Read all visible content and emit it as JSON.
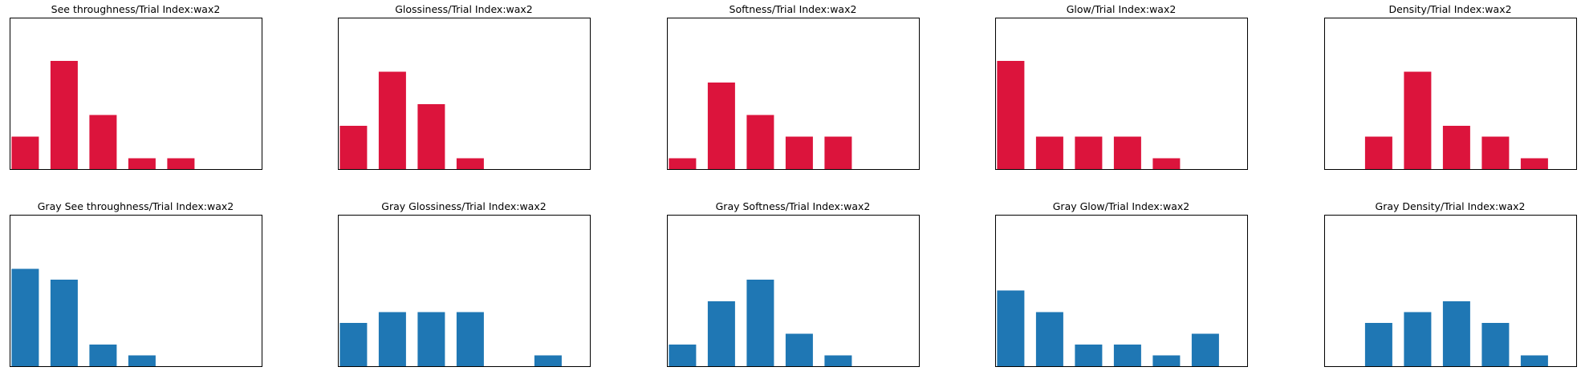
{
  "colors": {
    "red_series": "#DC143C",
    "blue_series": "#1F77B4",
    "frame": "#000000",
    "background": "#FFFFFF"
  },
  "chart_data": [
    {
      "type": "bar",
      "title": "See throughness/Trial Index:wax2",
      "xlabel": "",
      "ylabel": "",
      "xlim": [
        0,
        6
      ],
      "ylim": [
        0,
        7
      ],
      "grid": false,
      "color": "red",
      "series": [
        {
          "values": [
            {
              "x": 1,
              "y": 1.5
            },
            {
              "x": 2,
              "y": 5
            },
            {
              "x": 3,
              "y": 2.5
            },
            {
              "x": 4,
              "y": 0.5
            },
            {
              "x": 5,
              "y": 0.5
            }
          ]
        }
      ]
    },
    {
      "type": "bar",
      "title": "Glossiness/Trial Index:wax2",
      "xlabel": "",
      "ylabel": "",
      "xlim": [
        0,
        6
      ],
      "ylim": [
        0,
        7
      ],
      "grid": false,
      "color": "red",
      "series": [
        {
          "values": [
            {
              "x": 1,
              "y": 2
            },
            {
              "x": 2,
              "y": 4.5
            },
            {
              "x": 3,
              "y": 3
            },
            {
              "x": 4,
              "y": 0.5
            }
          ]
        }
      ]
    },
    {
      "type": "bar",
      "title": "Softness/Trial Index:wax2",
      "xlabel": "",
      "ylabel": "",
      "xlim": [
        0,
        6
      ],
      "ylim": [
        0,
        7
      ],
      "grid": false,
      "color": "red",
      "series": [
        {
          "values": [
            {
              "x": 1,
              "y": 0.5
            },
            {
              "x": 2,
              "y": 4
            },
            {
              "x": 3,
              "y": 2.5
            },
            {
              "x": 4,
              "y": 1.5
            },
            {
              "x": 5,
              "y": 1.5
            }
          ]
        }
      ]
    },
    {
      "type": "bar",
      "title": "Glow/Trial Index:wax2",
      "xlabel": "",
      "ylabel": "",
      "xlim": [
        0,
        6
      ],
      "ylim": [
        0,
        7
      ],
      "grid": false,
      "color": "red",
      "series": [
        {
          "values": [
            {
              "x": 1,
              "y": 5
            },
            {
              "x": 2,
              "y": 1.5
            },
            {
              "x": 3,
              "y": 1.5
            },
            {
              "x": 4,
              "y": 1.5
            },
            {
              "x": 5,
              "y": 0.5
            }
          ]
        }
      ]
    },
    {
      "type": "bar",
      "title": "Density/Trial Index:wax2",
      "xlabel": "",
      "ylabel": "",
      "xlim": [
        0,
        6
      ],
      "ylim": [
        0,
        7
      ],
      "grid": false,
      "color": "red",
      "series": [
        {
          "values": [
            {
              "x": 2,
              "y": 1.5
            },
            {
              "x": 3,
              "y": 4.5
            },
            {
              "x": 4,
              "y": 2
            },
            {
              "x": 5,
              "y": 1.5
            },
            {
              "x": 6,
              "y": 0.5
            }
          ]
        }
      ]
    },
    {
      "type": "bar",
      "title": "Gray See throughness/Trial Index:wax2",
      "xlabel": "",
      "ylabel": "",
      "xlim": [
        0,
        6
      ],
      "ylim": [
        0,
        7
      ],
      "grid": false,
      "color": "blue",
      "series": [
        {
          "values": [
            {
              "x": 1,
              "y": 4.5
            },
            {
              "x": 2,
              "y": 4
            },
            {
              "x": 3,
              "y": 1
            },
            {
              "x": 4,
              "y": 0.5
            }
          ]
        }
      ]
    },
    {
      "type": "bar",
      "title": "Gray Glossiness/Trial Index:wax2",
      "xlabel": "",
      "ylabel": "",
      "xlim": [
        0,
        6
      ],
      "ylim": [
        0,
        7
      ],
      "grid": false,
      "color": "blue",
      "series": [
        {
          "values": [
            {
              "x": 1,
              "y": 2
            },
            {
              "x": 2,
              "y": 2.5
            },
            {
              "x": 3,
              "y": 2.5
            },
            {
              "x": 4,
              "y": 2.5
            },
            {
              "x": 6,
              "y": 0.5
            }
          ]
        }
      ]
    },
    {
      "type": "bar",
      "title": "Gray Softness/Trial Index:wax2",
      "xlabel": "",
      "ylabel": "",
      "xlim": [
        0,
        6
      ],
      "ylim": [
        0,
        7
      ],
      "grid": false,
      "color": "blue",
      "series": [
        {
          "values": [
            {
              "x": 1,
              "y": 1
            },
            {
              "x": 2,
              "y": 3
            },
            {
              "x": 3,
              "y": 4
            },
            {
              "x": 4,
              "y": 1.5
            },
            {
              "x": 5,
              "y": 0.5
            }
          ]
        }
      ]
    },
    {
      "type": "bar",
      "title": "Gray Glow/Trial Index:wax2",
      "xlabel": "",
      "ylabel": "",
      "xlim": [
        0,
        6
      ],
      "ylim": [
        0,
        7
      ],
      "grid": false,
      "color": "blue",
      "series": [
        {
          "values": [
            {
              "x": 1,
              "y": 3.5
            },
            {
              "x": 2,
              "y": 2.5
            },
            {
              "x": 3,
              "y": 1
            },
            {
              "x": 4,
              "y": 1
            },
            {
              "x": 5,
              "y": 0.5
            },
            {
              "x": 6,
              "y": 1.5
            }
          ]
        }
      ]
    },
    {
      "type": "bar",
      "title": "Gray Density/Trial Index:wax2",
      "xlabel": "",
      "ylabel": "",
      "xlim": [
        0,
        6
      ],
      "ylim": [
        0,
        7
      ],
      "grid": false,
      "color": "blue",
      "series": [
        {
          "values": [
            {
              "x": 2,
              "y": 2
            },
            {
              "x": 3,
              "y": 2.5
            },
            {
              "x": 4,
              "y": 3
            },
            {
              "x": 5,
              "y": 2
            },
            {
              "x": 6,
              "y": 0.5
            }
          ]
        }
      ]
    }
  ]
}
